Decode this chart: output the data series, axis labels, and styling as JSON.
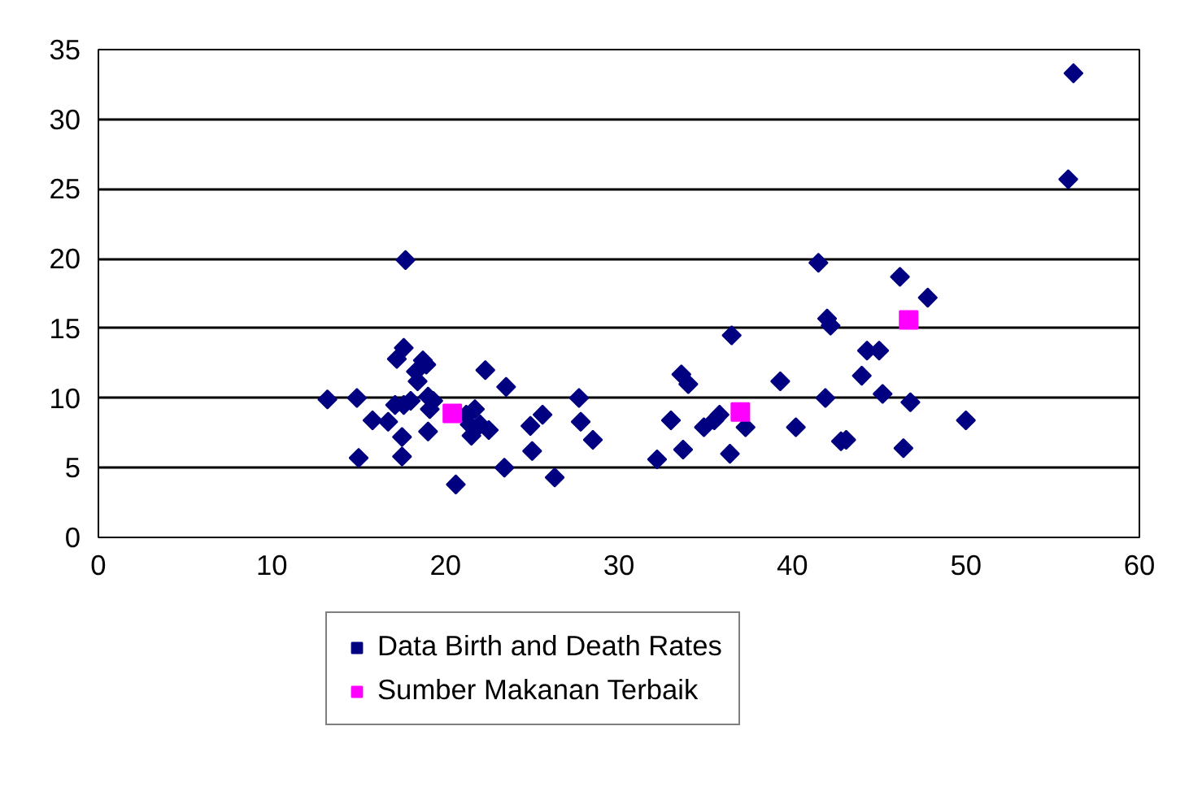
{
  "chart_data": {
    "type": "scatter",
    "xlim": [
      0,
      60
    ],
    "xticks": [
      0,
      10,
      20,
      30,
      40,
      50,
      60
    ],
    "ylim": [
      0,
      35
    ],
    "yticks": [
      0,
      5,
      10,
      15,
      20,
      25,
      30,
      35
    ],
    "grid": "y",
    "legend": "bottom",
    "series": [
      {
        "name": "Data Birth and Death Rates",
        "color": "#000080",
        "marker": "diamond",
        "x": [
          13.2,
          14.9,
          15.0,
          15.8,
          16.7,
          17.1,
          17.2,
          17.6,
          17.7,
          17.5,
          17.5,
          17.6,
          18.0,
          18.3,
          18.4,
          18.7,
          18.9,
          19.0,
          19.1,
          19.0,
          19.3,
          20.6,
          21.2,
          21.4,
          21.5,
          21.7,
          22.0,
          22.3,
          22.5,
          23.5,
          23.4,
          24.9,
          25.0,
          25.6,
          26.3,
          27.7,
          27.8,
          28.5,
          32.2,
          33.0,
          33.6,
          34.0,
          33.7,
          34.9,
          35.5,
          35.8,
          36.5,
          36.4,
          37.3,
          39.3,
          40.2,
          41.5,
          41.9,
          42.0,
          42.2,
          42.8,
          43.1,
          44.0,
          44.3,
          45.0,
          45.2,
          46.2,
          46.4,
          46.8,
          47.8,
          50.0,
          56.2,
          55.9
        ],
        "values": [
          9.9,
          10.0,
          5.7,
          8.4,
          8.3,
          9.5,
          12.8,
          13.6,
          19.9,
          7.2,
          5.8,
          9.5,
          9.8,
          11.9,
          11.2,
          12.7,
          12.4,
          10.1,
          9.2,
          7.6,
          9.8,
          3.8,
          8.8,
          8.1,
          7.3,
          9.2,
          8.1,
          12.0,
          7.7,
          10.8,
          5.0,
          8.0,
          6.2,
          8.8,
          4.3,
          10.0,
          8.3,
          7.0,
          5.6,
          8.4,
          11.7,
          11.0,
          6.3,
          7.9,
          8.4,
          8.8,
          14.5,
          6.0,
          7.9,
          11.2,
          7.9,
          19.7,
          10.0,
          15.7,
          15.2,
          6.9,
          7.0,
          11.6,
          13.4,
          13.4,
          10.3,
          18.7,
          6.4,
          9.7,
          17.2,
          8.4,
          33.3,
          25.7
        ]
      },
      {
        "name": "Sumber Makanan Terbaik",
        "color": "#ff00ff",
        "marker": "square",
        "x": [
          20.4,
          37.0,
          46.7
        ],
        "values": [
          8.9,
          9.0,
          15.6
        ]
      }
    ]
  }
}
